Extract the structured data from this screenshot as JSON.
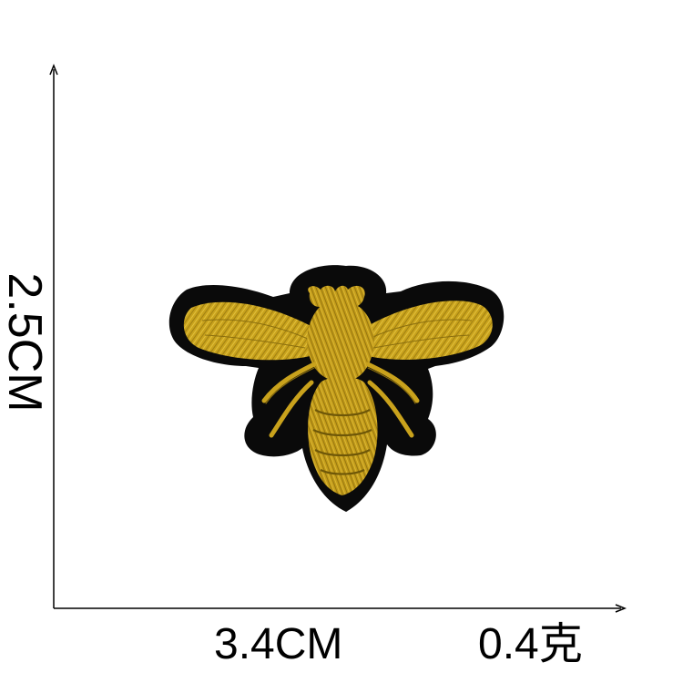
{
  "dimensions": {
    "height_label": "2.5CM",
    "width_label": "3.4CM",
    "weight_label": "0.4克"
  },
  "product": {
    "image": "bee-embroidered-patch",
    "colors": {
      "embroidery": "#c9a21c",
      "embroidery_highlight": "#e6c845",
      "embroidery_shadow": "#8a6e0e",
      "border": "#0a0a0a",
      "background": "#ffffff"
    }
  }
}
